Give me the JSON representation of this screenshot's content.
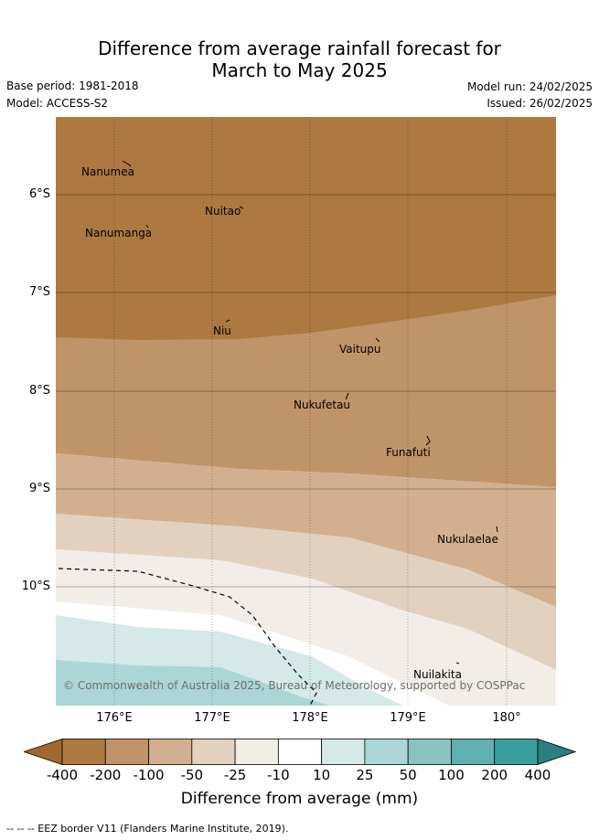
{
  "title": {
    "line1": "Difference from average rainfall forecast for",
    "line2": "March to May 2025"
  },
  "meta": {
    "base_period": "Base period: 1981-2018",
    "model": "Model: ACCESS-S2",
    "model_run": "Model run: 24/02/2025",
    "issued": "Issued: 26/02/2025"
  },
  "map": {
    "lat_ticks": [
      "6°S",
      "7°S",
      "8°S",
      "9°S",
      "10°S"
    ],
    "lon_ticks": [
      "176°E",
      "177°E",
      "178°E",
      "179°E",
      "180°"
    ],
    "islands": [
      "Nanumea",
      "Nuitao",
      "Nanumanga",
      "Niu",
      "Vaitupu",
      "Nukufetau",
      "Funafuti",
      "Nukulaelae",
      "Nuilakita"
    ],
    "copyright": "© Commonwealth of Australia 2025, Bureau of Meteorology, supported by COSPPac"
  },
  "colorbar": {
    "ticks": [
      "-400",
      "-200",
      "-100",
      "-50",
      "-25",
      "-10",
      "10",
      "25",
      "50",
      "100",
      "200",
      "400"
    ],
    "colors": [
      "#a0692f",
      "#ad7941",
      "#c09469",
      "#d2b08f",
      "#e3d1c0",
      "#f2ede7",
      "#ffffff",
      "#d4e9e8",
      "#acd6d5",
      "#88c3c2",
      "#5fb0af",
      "#3a9e9d",
      "#2b7f7e"
    ],
    "label": "Difference from average (mm)"
  },
  "footnote": "-- -- -- EEZ border V11 (Flanders Marine Institute, 2019)."
}
